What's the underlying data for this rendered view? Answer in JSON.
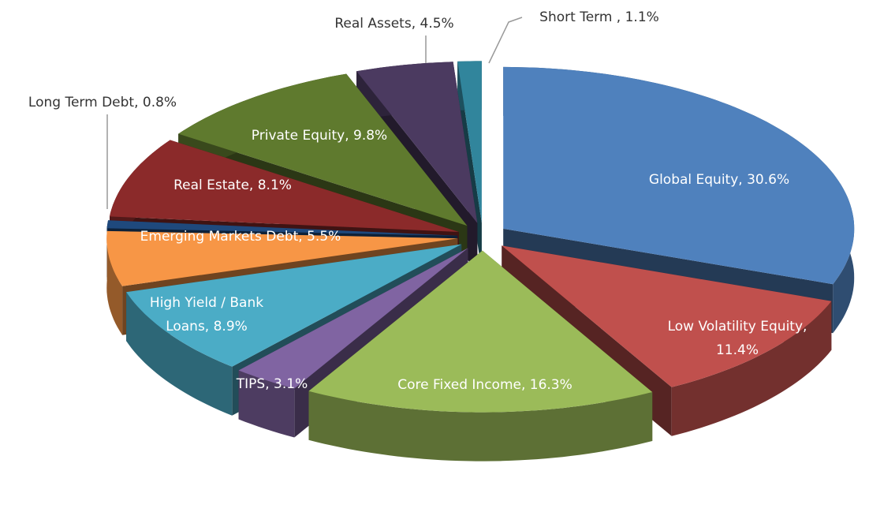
{
  "chart_data": {
    "type": "pie",
    "values": [
      30.6,
      11.4,
      16.3,
      3.1,
      8.9,
      5.5,
      0.8,
      8.1,
      9.8,
      4.5,
      1.1
    ],
    "value_labels": [
      "Global Equity, 30.6%",
      "Low Volatility Equity, 11.4%",
      "Core Fixed Income, 16.3%",
      "TIPS, 3.1%",
      "High Yield / Bank Loans, 8.9%",
      "Emerging Markets Debt, 5.5%",
      "Long Term Debt, 0.8%",
      "Real Estate, 8.1%",
      "Private Equity, 9.8%",
      "Real Assets, 4.5%",
      "Short Term , 1.1%"
    ],
    "colors": [
      "#4f81bd",
      "#c0504d",
      "#9bbb59",
      "#8064a2",
      "#4bacc6",
      "#f79646",
      "#1f497d",
      "#8b2a2a",
      "#5f7a2e",
      "#4b3a60",
      "#31859c"
    ]
  }
}
